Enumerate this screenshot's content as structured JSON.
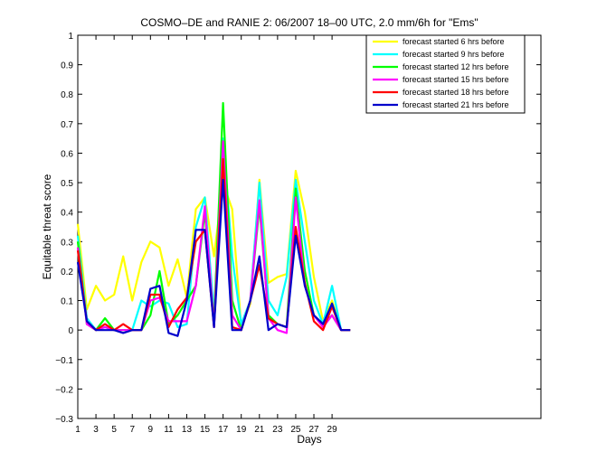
{
  "chart_data": {
    "type": "line",
    "title": "COSMO–DE and RANIE 2: 06/2007 18–00 UTC, 2.0 mm/6h for \"Ems\"",
    "xlabel": "Days",
    "ylabel": "Equitable threat score",
    "xlim": [
      1,
      52
    ],
    "ylim": [
      -0.3,
      1
    ],
    "x_ticks": [
      1,
      3,
      5,
      7,
      9,
      11,
      13,
      15,
      17,
      19,
      21,
      23,
      25,
      27,
      29
    ],
    "y_ticks": [
      -0.3,
      -0.2,
      -0.1,
      0,
      0.1,
      0.2,
      0.3,
      0.4,
      0.5,
      0.6,
      0.7,
      0.8,
      0.9,
      1
    ],
    "y_tick_labels": [
      "−0.3",
      "−0.2",
      "−0.1",
      "0",
      "0.1",
      "0.2",
      "0.3",
      "0.4",
      "0.5",
      "0.6",
      "0.7",
      "0.8",
      "0.9",
      "1"
    ],
    "legend_position": "top-right",
    "grid": false,
    "x": [
      1,
      2,
      3,
      4,
      5,
      6,
      7,
      8,
      9,
      10,
      11,
      12,
      13,
      14,
      15,
      16,
      17,
      18,
      19,
      20,
      21,
      22,
      23,
      24,
      25,
      26,
      27,
      28,
      29,
      30,
      31
    ],
    "series": [
      {
        "name": "forecast started 6 hrs before",
        "color": "#ffff00",
        "values": [
          0.36,
          0.07,
          0.15,
          0.1,
          0.12,
          0.25,
          0.1,
          0.23,
          0.3,
          0.28,
          0.15,
          0.24,
          0.11,
          0.41,
          0.45,
          0.25,
          0.5,
          0.41,
          0.01,
          0.09,
          0.51,
          0.16,
          0.18,
          0.19,
          0.54,
          0.4,
          0.18,
          0.03,
          0.1,
          0.0,
          0.0
        ]
      },
      {
        "name": "forecast started 9 hrs before",
        "color": "#00ffff",
        "values": [
          0.32,
          0.04,
          0.0,
          0.01,
          0.0,
          0.0,
          0.0,
          0.1,
          0.08,
          0.1,
          0.09,
          0.01,
          0.02,
          0.35,
          0.45,
          0.05,
          0.65,
          0.25,
          0.02,
          0.1,
          0.5,
          0.1,
          0.05,
          0.18,
          0.51,
          0.3,
          0.1,
          0.02,
          0.15,
          0.0,
          0.0
        ]
      },
      {
        "name": "forecast started 12 hrs before",
        "color": "#00ff00",
        "values": [
          0.3,
          0.02,
          0.0,
          0.04,
          0.0,
          0.0,
          0.0,
          0.0,
          0.05,
          0.2,
          0.02,
          0.05,
          0.1,
          0.15,
          0.4,
          0.02,
          0.77,
          0.1,
          0.0,
          0.1,
          0.42,
          0.05,
          0.02,
          0.01,
          0.48,
          0.2,
          0.05,
          0.02,
          0.05,
          0.0,
          0.0
        ]
      },
      {
        "name": "forecast started 15 hrs before",
        "color": "#ff00ff",
        "values": [
          0.28,
          0.02,
          0.0,
          0.01,
          0.0,
          0.0,
          0.0,
          0.0,
          0.1,
          0.11,
          0.03,
          0.03,
          0.03,
          0.15,
          0.42,
          0.01,
          0.64,
          0.05,
          0.0,
          0.1,
          0.44,
          0.04,
          0.0,
          -0.01,
          0.45,
          0.15,
          0.05,
          0.01,
          0.05,
          0.0,
          0.0
        ]
      },
      {
        "name": "forecast started 18 hrs before",
        "color": "#ff0000",
        "values": [
          0.27,
          0.03,
          0.0,
          0.02,
          0.0,
          0.02,
          0.0,
          0.0,
          0.12,
          0.12,
          0.01,
          0.07,
          0.11,
          0.3,
          0.34,
          0.01,
          0.58,
          0.01,
          0.0,
          0.1,
          0.22,
          0.04,
          0.02,
          0.01,
          0.35,
          0.16,
          0.03,
          0.0,
          0.08,
          0.0,
          0.0
        ]
      },
      {
        "name": "forecast started 21 hrs before",
        "color": "#0000cc",
        "values": [
          0.23,
          0.03,
          0.0,
          0.0,
          0.0,
          -0.01,
          0.0,
          0.0,
          0.14,
          0.15,
          -0.01,
          -0.02,
          0.1,
          0.34,
          0.34,
          0.01,
          0.51,
          0.0,
          0.0,
          0.1,
          0.25,
          0.0,
          0.02,
          0.01,
          0.32,
          0.15,
          0.05,
          0.02,
          0.09,
          0.0,
          0.0
        ]
      }
    ]
  }
}
